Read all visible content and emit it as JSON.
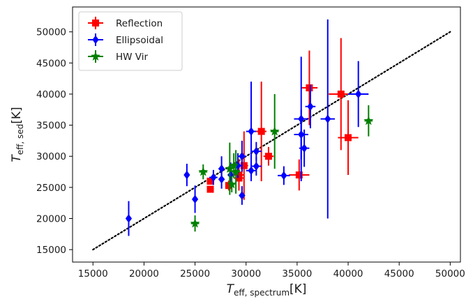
{
  "chart_data": {
    "type": "scatter",
    "xlim": [
      13000,
      51000
    ],
    "ylim": [
      13000,
      54000
    ],
    "x_ticks": [
      15000,
      20000,
      25000,
      30000,
      35000,
      40000,
      45000,
      50000
    ],
    "y_ticks": [
      15000,
      20000,
      25000,
      30000,
      35000,
      40000,
      45000,
      50000
    ],
    "xlabel": {
      "base": "T",
      "sub": "eff, spectrum",
      "unit": "[K]"
    },
    "ylabel": {
      "base": "T",
      "sub": "eff, sed",
      "unit": "[K]"
    },
    "reference_line": {
      "style": "dotted",
      "color": "#000000",
      "x": [
        15000,
        50000
      ],
      "y": [
        15000,
        50000
      ]
    },
    "legend": {
      "position": "top-left"
    },
    "series": [
      {
        "name": "Reflection",
        "marker": "square",
        "color": "#ff0000",
        "points": [
          {
            "x": 26500,
            "y": 24700,
            "xerr": 300,
            "yerr": 500
          },
          {
            "x": 26500,
            "y": 26000,
            "xerr": 300,
            "yerr": 500
          },
          {
            "x": 28300,
            "y": 25300,
            "xerr": 300,
            "yerr": 800
          },
          {
            "x": 29300,
            "y": 26500,
            "xerr": 500,
            "yerr": 2000
          },
          {
            "x": 29300,
            "y": 27000,
            "xerr": 500,
            "yerr": 2500
          },
          {
            "x": 29800,
            "y": 28500,
            "xerr": 400,
            "yerr": 5500
          },
          {
            "x": 31500,
            "y": 34000,
            "xerr": 500,
            "yerr": 8000
          },
          {
            "x": 32200,
            "y": 30000,
            "xerr": 500,
            "yerr": 1500
          },
          {
            "x": 35200,
            "y": 27000,
            "xerr": 1000,
            "yerr": 2500
          },
          {
            "x": 36200,
            "y": 41000,
            "xerr": 800,
            "yerr": 6000
          },
          {
            "x": 39300,
            "y": 40000,
            "xerr": 1200,
            "yerr": 9000
          },
          {
            "x": 40000,
            "y": 33000,
            "xerr": 1000,
            "yerr": 6000
          }
        ]
      },
      {
        "name": "Ellipsoidal",
        "marker": "diamond",
        "color": "#0000ff",
        "points": [
          {
            "x": 18500,
            "y": 20000,
            "xerr": 200,
            "yerr": 2800
          },
          {
            "x": 24200,
            "y": 27000,
            "xerr": 200,
            "yerr": 1800
          },
          {
            "x": 25000,
            "y": 23100,
            "xerr": 200,
            "yerr": 2200
          },
          {
            "x": 26800,
            "y": 26600,
            "xerr": 400,
            "yerr": 1200
          },
          {
            "x": 27600,
            "y": 26300,
            "xerr": 300,
            "yerr": 1500
          },
          {
            "x": 27600,
            "y": 28000,
            "xerr": 300,
            "yerr": 2000
          },
          {
            "x": 28500,
            "y": 27000,
            "xerr": 300,
            "yerr": 2000
          },
          {
            "x": 29200,
            "y": 28500,
            "xerr": 400,
            "yerr": 2000
          },
          {
            "x": 29600,
            "y": 30000,
            "xerr": 400,
            "yerr": 2500
          },
          {
            "x": 29600,
            "y": 23700,
            "xerr": 300,
            "yerr": 1500
          },
          {
            "x": 30500,
            "y": 27700,
            "xerr": 500,
            "yerr": 1000
          },
          {
            "x": 30500,
            "y": 34000,
            "xerr": 500,
            "yerr": 8000
          },
          {
            "x": 31000,
            "y": 28400,
            "xerr": 500,
            "yerr": 1500
          },
          {
            "x": 31000,
            "y": 30800,
            "xerr": 500,
            "yerr": 1500
          },
          {
            "x": 33700,
            "y": 26900,
            "xerr": 600,
            "yerr": 1500
          },
          {
            "x": 35400,
            "y": 33500,
            "xerr": 700,
            "yerr": 4000
          },
          {
            "x": 35400,
            "y": 36000,
            "xerr": 700,
            "yerr": 10000
          },
          {
            "x": 35700,
            "y": 31300,
            "xerr": 500,
            "yerr": 3000
          },
          {
            "x": 36300,
            "y": 38000,
            "xerr": 500,
            "yerr": 3500
          },
          {
            "x": 38000,
            "y": 36000,
            "xerr": 700,
            "yerr": 16000
          },
          {
            "x": 41000,
            "y": 40000,
            "xerr": 1000,
            "yerr": 5300
          }
        ]
      },
      {
        "name": "HW Vir",
        "marker": "triangle",
        "color": "#008000",
        "points": [
          {
            "x": 25000,
            "y": 19200,
            "xerr": 400,
            "yerr": 1300
          },
          {
            "x": 25800,
            "y": 27500,
            "xerr": 400,
            "yerr": 1200
          },
          {
            "x": 28400,
            "y": 28000,
            "xerr": 300,
            "yerr": 4200
          },
          {
            "x": 28600,
            "y": 25500,
            "xerr": 300,
            "yerr": 1300
          },
          {
            "x": 28800,
            "y": 28500,
            "xerr": 300,
            "yerr": 2000
          },
          {
            "x": 29000,
            "y": 27500,
            "xerr": 400,
            "yerr": 3500
          },
          {
            "x": 32800,
            "y": 34000,
            "xerr": 400,
            "yerr": 6000
          },
          {
            "x": 42000,
            "y": 35700,
            "xerr": 400,
            "yerr": 2500
          }
        ]
      }
    ]
  }
}
